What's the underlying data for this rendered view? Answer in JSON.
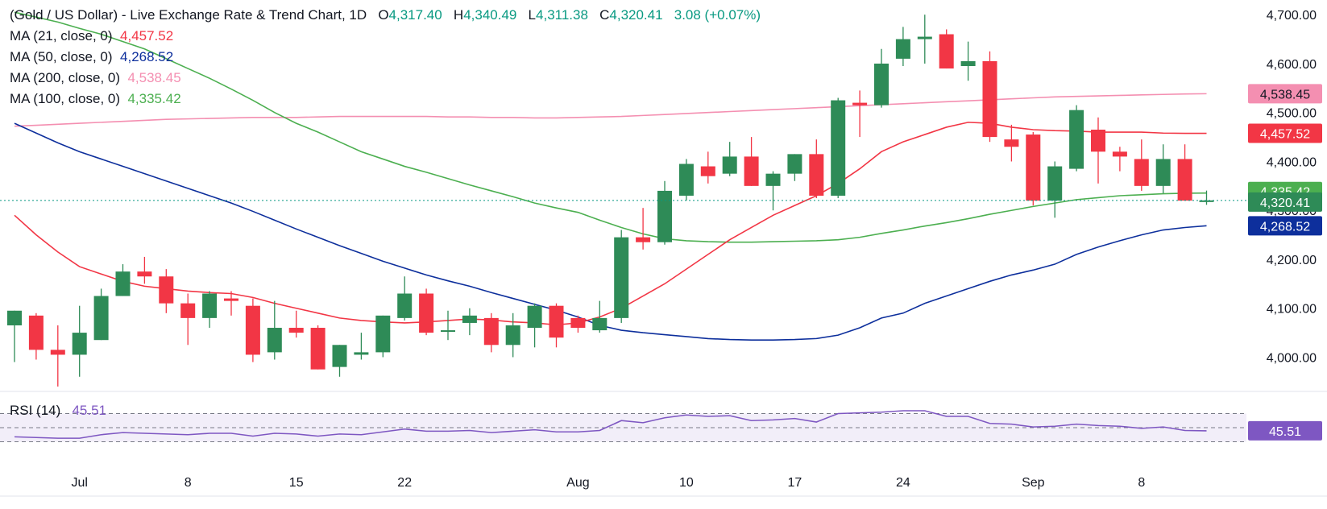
{
  "header": {
    "title": "(Gold / US Dollar) - Live Exchange Rate & Trend Chart, 1D",
    "o_label": "O",
    "o_value": "4,317.40",
    "h_label": "H",
    "h_value": "4,340.49",
    "l_label": "L",
    "l_value": "4,311.38",
    "c_label": "C",
    "c_value": "4,320.41",
    "change": "3.08 (+0.07%)"
  },
  "indicators": [
    {
      "label": "MA (21, close, 0)",
      "value": "4,457.52",
      "color": "#f23645"
    },
    {
      "label": "MA (50, close, 0)",
      "value": "4,268.52",
      "color": "#0d2f9c"
    },
    {
      "label": "MA (200, close, 0)",
      "value": "4,538.45",
      "color": "#f48fb1"
    },
    {
      "label": "MA (100, close, 0)",
      "value": "4,335.42",
      "color": "#4caf50"
    }
  ],
  "rsi": {
    "label": "RSI (14)",
    "value": "45.51",
    "color": "#7e57c2"
  },
  "colors": {
    "up": "#089981",
    "down": "#f23645",
    "upBody": "#2e8b57",
    "downBody": "#f23645"
  },
  "chart_data": {
    "type": "candlestick",
    "title": "(Gold / US Dollar) - Live Exchange Rate & Trend Chart, 1D",
    "y_ticks": [
      "4,000.00",
      "4,100.00",
      "4,200.00",
      "4,300.00",
      "4,400.00",
      "4,500.00",
      "4,600.00",
      "4,700.00"
    ],
    "ylim": [
      3930,
      4730
    ],
    "x_ticks": [
      {
        "label": "Jul",
        "index": 3
      },
      {
        "label": "8",
        "index": 8
      },
      {
        "label": "15",
        "index": 13
      },
      {
        "label": "22",
        "index": 18
      },
      {
        "label": "Aug",
        "index": 26
      },
      {
        "label": "10",
        "index": 31
      },
      {
        "label": "17",
        "index": 36
      },
      {
        "label": "24",
        "index": 41
      },
      {
        "label": "Sep",
        "index": 47
      },
      {
        "label": "8",
        "index": 52
      }
    ],
    "candles": [
      [
        4065,
        4095,
        3990,
        4095
      ],
      [
        4085,
        4090,
        3995,
        4015
      ],
      [
        4015,
        4065,
        3940,
        4005
      ],
      [
        4005,
        4105,
        3960,
        4050
      ],
      [
        4035,
        4140,
        4035,
        4125
      ],
      [
        4125,
        4190,
        4125,
        4175
      ],
      [
        4175,
        4205,
        4150,
        4165
      ],
      [
        4165,
        4180,
        4090,
        4110
      ],
      [
        4110,
        4130,
        4025,
        4080
      ],
      [
        4080,
        4135,
        4060,
        4130
      ],
      [
        4120,
        4135,
        4085,
        4115
      ],
      [
        4105,
        4120,
        3990,
        4005
      ],
      [
        4010,
        4115,
        3995,
        4060
      ],
      [
        4060,
        4095,
        4040,
        4050
      ],
      [
        4060,
        4065,
        3975,
        3975
      ],
      [
        3980,
        4025,
        3960,
        4025
      ],
      [
        4005,
        4050,
        3995,
        4010
      ],
      [
        4010,
        4085,
        4000,
        4085
      ],
      [
        4080,
        4165,
        4075,
        4130
      ],
      [
        4130,
        4140,
        4045,
        4050
      ],
      [
        4055,
        4095,
        4035,
        4055
      ],
      [
        4070,
        4100,
        4045,
        4085
      ],
      [
        4080,
        4090,
        4010,
        4025
      ],
      [
        4025,
        4090,
        4000,
        4065
      ],
      [
        4060,
        4110,
        4020,
        4105
      ],
      [
        4105,
        4110,
        4020,
        4040
      ],
      [
        4080,
        4085,
        4050,
        4060
      ],
      [
        4055,
        4115,
        4050,
        4080
      ],
      [
        4080,
        4260,
        4070,
        4245
      ],
      [
        4245,
        4305,
        4220,
        4235
      ],
      [
        4235,
        4360,
        4230,
        4340
      ],
      [
        4330,
        4405,
        4320,
        4395
      ],
      [
        4390,
        4420,
        4355,
        4370
      ],
      [
        4375,
        4440,
        4370,
        4410
      ],
      [
        4410,
        4450,
        4350,
        4350
      ],
      [
        4350,
        4380,
        4300,
        4375
      ],
      [
        4375,
        4415,
        4360,
        4415
      ],
      [
        4415,
        4445,
        4325,
        4330
      ],
      [
        4330,
        4530,
        4325,
        4525
      ],
      [
        4520,
        4545,
        4450,
        4515
      ],
      [
        4515,
        4630,
        4510,
        4600
      ],
      [
        4610,
        4675,
        4595,
        4650
      ],
      [
        4650,
        4700,
        4600,
        4655
      ],
      [
        4660,
        4670,
        4590,
        4590
      ],
      [
        4595,
        4645,
        4565,
        4605
      ],
      [
        4605,
        4625,
        4440,
        4450
      ],
      [
        4445,
        4475,
        4400,
        4430
      ],
      [
        4455,
        4460,
        4310,
        4320
      ],
      [
        4320,
        4400,
        4285,
        4390
      ],
      [
        4385,
        4515,
        4380,
        4505
      ],
      [
        4465,
        4490,
        4355,
        4420
      ],
      [
        4420,
        4430,
        4380,
        4410
      ],
      [
        4405,
        4445,
        4340,
        4350
      ],
      [
        4350,
        4435,
        4335,
        4405
      ],
      [
        4405,
        4435,
        4320,
        4320
      ],
      [
        4317.4,
        4340.49,
        4311.38,
        4320.41
      ]
    ],
    "ma21": [
      4290,
      4250,
      4215,
      4185,
      4170,
      4155,
      4145,
      4140,
      4135,
      4132,
      4130,
      4122,
      4110,
      4100,
      4090,
      4080,
      4075,
      4072,
      4070,
      4072,
      4075,
      4078,
      4076,
      4072,
      4070,
      4066,
      4070,
      4082,
      4100,
      4125,
      4150,
      4180,
      4210,
      4240,
      4265,
      4290,
      4310,
      4330,
      4355,
      4385,
      4420,
      4440,
      4455,
      4470,
      4480,
      4478,
      4470,
      4465,
      4463,
      4462,
      4460,
      4460,
      4460,
      4458,
      4457.52,
      4457.52
    ],
    "ma50": [
      4478,
      4458,
      4438,
      4420,
      4405,
      4390,
      4375,
      4360,
      4345,
      4330,
      4315,
      4298,
      4280,
      4262,
      4245,
      4228,
      4212,
      4196,
      4182,
      4168,
      4156,
      4145,
      4132,
      4120,
      4108,
      4096,
      4082,
      4065,
      4055,
      4050,
      4046,
      4042,
      4038,
      4036,
      4035,
      4035,
      4036,
      4038,
      4045,
      4060,
      4080,
      4090,
      4110,
      4125,
      4140,
      4155,
      4168,
      4178,
      4190,
      4210,
      4225,
      4238,
      4250,
      4260,
      4265,
      4268.52
    ],
    "ma100": [
      4705,
      4695,
      4685,
      4672,
      4660,
      4645,
      4630,
      4610,
      4590,
      4570,
      4548,
      4525,
      4500,
      4478,
      4460,
      4440,
      4420,
      4405,
      4390,
      4378,
      4365,
      4352,
      4340,
      4328,
      4315,
      4305,
      4296,
      4280,
      4265,
      4252,
      4242,
      4238,
      4236,
      4235,
      4235,
      4236,
      4237,
      4238,
      4240,
      4245,
      4253,
      4260,
      4268,
      4275,
      4283,
      4292,
      4300,
      4308,
      4315,
      4322,
      4326,
      4330,
      4332,
      4334,
      4335,
      4335.42
    ],
    "ma200": [
      4472,
      4474,
      4476,
      4478,
      4480,
      4482,
      4484,
      4486,
      4487,
      4488,
      4489,
      4490,
      4490,
      4490,
      4491,
      4492,
      4492,
      4492,
      4492,
      4492,
      4491,
      4491,
      4490,
      4490,
      4489,
      4489,
      4490,
      4491,
      4492,
      4494,
      4496,
      4498,
      4500,
      4502,
      4504,
      4506,
      4508,
      4510,
      4512,
      4514,
      4516,
      4518,
      4520,
      4522,
      4524,
      4526,
      4528,
      4530,
      4532,
      4533,
      4534,
      4535,
      4536,
      4537,
      4538,
      4538.45
    ],
    "rsi_values": [
      37,
      36,
      35,
      35,
      40,
      43,
      42,
      41,
      40,
      42,
      42,
      38,
      42,
      41,
      38,
      41,
      40,
      44,
      48,
      45,
      45,
      46,
      43,
      45,
      47,
      44,
      44,
      46,
      60,
      57,
      64,
      68,
      66,
      67,
      60,
      61,
      63,
      58,
      70,
      71,
      72,
      74,
      74,
      66,
      66,
      56,
      55,
      51,
      52,
      55,
      53,
      52,
      49,
      51,
      46,
      45.51
    ],
    "rsi_ylim": [
      10,
      90
    ]
  }
}
